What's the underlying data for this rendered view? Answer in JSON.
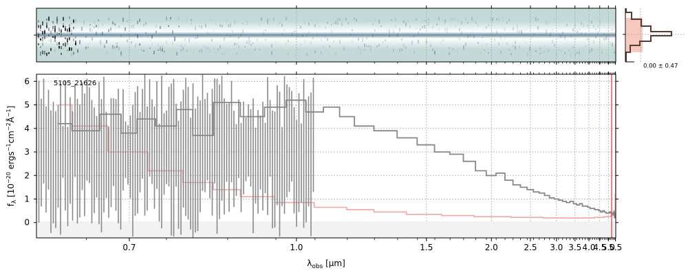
{
  "figure": {
    "object_label": "5105_21626",
    "profile_label": "0.00 ± 0.47"
  },
  "colors": {
    "spectrum": "#888888",
    "error": "#f5a3a3",
    "edge": "#e05050",
    "profile_fill": "#f7c8bc",
    "profile_line": "#5a3b32",
    "spec2d_background": "#c4dad9",
    "grid": "#aaaaaa"
  },
  "chart_data": [
    {
      "type": "heatmap",
      "panel": "2D spectrum",
      "description_of_axes": "shares wavelength axis with the 1D spectrum",
      "grid": true
    },
    {
      "type": "line",
      "panel": "spatial profile",
      "label": "0.00 ± 0.47"
    },
    {
      "type": "line",
      "panel": "1D spectrum",
      "title": "",
      "annotation": "5105_21626",
      "xlabel": "λ_obs [μm]",
      "ylabel": "f_λ [10^-20 ergs^-1 cm^-2 Å^-1]",
      "xscale": "reciprocal",
      "xlim": [
        0.6,
        5.52
      ],
      "ylim": [
        -0.65,
        6.3
      ],
      "grid": true,
      "x_ticks": [
        0.7,
        1.0,
        1.5,
        2.0,
        2.5,
        3.0,
        3.5,
        4.0,
        4.5,
        5.0,
        5.5
      ],
      "x_tick_labels": [
        "0.7",
        "1.0",
        "1.5",
        "2.0",
        "2.5",
        "3.0",
        "3.5",
        "4.0",
        "4.5",
        "5.0",
        "5.5"
      ],
      "y_ticks": [
        0,
        1,
        2,
        3,
        4,
        5,
        6
      ],
      "y_tick_labels": [
        "0",
        "1",
        "2",
        "3",
        "4",
        "5",
        "6"
      ],
      "series": [
        {
          "role": "flux",
          "step": true,
          "x": [
            0.62,
            0.65,
            0.68,
            0.7,
            0.72,
            0.75,
            0.78,
            0.8,
            0.85,
            0.9,
            0.95,
            1.0,
            1.05,
            1.1,
            1.15,
            1.2,
            1.3,
            1.4,
            1.5,
            1.6,
            1.7,
            1.8,
            1.9,
            2.0,
            2.1,
            2.2,
            2.3,
            2.4,
            2.5,
            2.6,
            2.7,
            2.8,
            2.9,
            3.0,
            3.1,
            3.2,
            3.3,
            3.4,
            3.5,
            3.6,
            3.7,
            3.8,
            3.9,
            4.0,
            4.1,
            4.2,
            4.3,
            4.4,
            4.5,
            4.6,
            4.7,
            4.8,
            4.9,
            5.0,
            5.1,
            5.2,
            5.3,
            5.4,
            5.45,
            5.5
          ],
          "y": [
            4.2,
            3.9,
            4.6,
            3.8,
            4.4,
            4.1,
            4.8,
            3.7,
            5.1,
            4.5,
            4.9,
            5.2,
            4.7,
            4.9,
            4.5,
            4.1,
            3.9,
            3.6,
            3.3,
            3.0,
            2.9,
            2.6,
            2.2,
            2.0,
            2.1,
            1.8,
            1.6,
            1.5,
            1.4,
            1.3,
            1.25,
            1.15,
            1.05,
            1.0,
            0.95,
            0.9,
            0.85,
            0.9,
            0.8,
            0.75,
            0.8,
            0.7,
            0.7,
            0.65,
            0.6,
            0.6,
            0.55,
            0.55,
            0.5,
            0.45,
            0.5,
            0.45,
            0.4,
            0.4,
            0.45,
            0.4,
            0.35,
            0.45,
            0.2,
            0.4
          ]
        },
        {
          "role": "uncertainty",
          "step": true,
          "x": [
            0.62,
            0.65,
            0.7,
            0.75,
            0.8,
            0.85,
            0.9,
            1.0,
            1.1,
            1.2,
            1.3,
            1.5,
            1.7,
            2.0,
            2.5,
            3.0,
            3.5,
            4.0,
            4.5,
            5.0,
            5.3,
            5.45,
            5.5,
            5.52
          ],
          "y": [
            5.0,
            4.1,
            3.0,
            2.2,
            1.7,
            1.4,
            1.1,
            0.85,
            0.65,
            0.55,
            0.45,
            0.35,
            0.3,
            0.25,
            0.22,
            0.2,
            0.19,
            0.2,
            0.22,
            0.25,
            0.3,
            0.5,
            1.2,
            6.3
          ]
        }
      ]
    }
  ]
}
